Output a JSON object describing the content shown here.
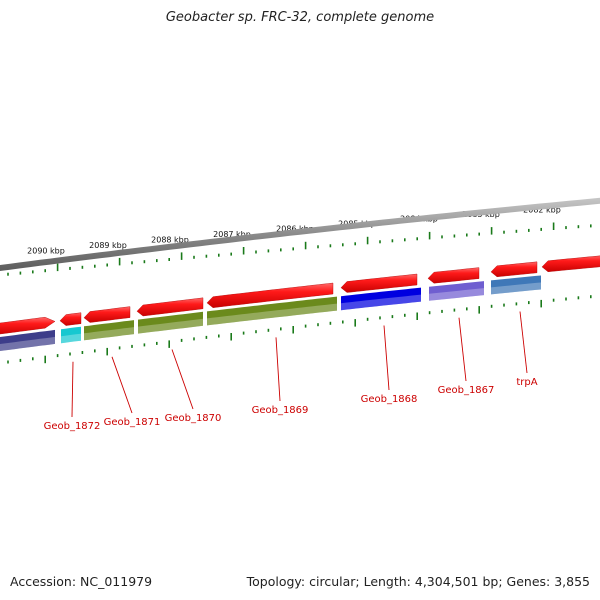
{
  "title": "Geobacter sp. FRC-32, complete genome",
  "footer": {
    "accession": "Accession: NC_011979",
    "topology": "Topology: circular; Length: 4,304,501 bp; Genes: 3,855"
  },
  "colors": {
    "forward": "#ff1a1a",
    "backbone": "#808080",
    "tick": "#1a7a1a",
    "label": "#cc0000"
  },
  "scale_labels": [
    "2090 kbp",
    "2089 kbp",
    "2088 kbp",
    "2087 kbp",
    "2086 kbp",
    "2085 kbp",
    "2084 kbp",
    "2083 kbp",
    "2082 kbp"
  ],
  "forward_genes": [
    {
      "start": -10,
      "end": 55,
      "dir": "right"
    },
    {
      "start": 60,
      "end": 82,
      "dir": "left"
    },
    {
      "start": 84,
      "end": 133,
      "dir": "left"
    },
    {
      "start": 137,
      "end": 203,
      "dir": "left"
    },
    {
      "start": 207,
      "end": 336,
      "dir": "left"
    },
    {
      "start": 341,
      "end": 418,
      "dir": "left"
    },
    {
      "start": 428,
      "end": 481,
      "dir": "left"
    },
    {
      "start": 491,
      "end": 540,
      "dir": "left"
    },
    {
      "start": 542,
      "end": 610,
      "dir": "left"
    }
  ],
  "cog_blocks": [
    {
      "start": -10,
      "end": 57,
      "color": "#3d3d8a"
    },
    {
      "start": 61,
      "end": 83,
      "color": "#17c8d0"
    },
    {
      "start": 84,
      "end": 138,
      "color": "#6b8a1c"
    },
    {
      "start": 138,
      "end": 204,
      "color": "#6b8a1c"
    },
    {
      "start": 207,
      "end": 338,
      "color": "#6b8a1c"
    },
    {
      "start": 341,
      "end": 421,
      "color": "#0000e0"
    },
    {
      "start": 429,
      "end": 484,
      "color": "#6f5ed0"
    },
    {
      "start": 491,
      "end": 542,
      "color": "#3f78b8"
    }
  ],
  "gene_labels": [
    {
      "text": "Geob_1872",
      "anchor": 73
    },
    {
      "text": "Geob_1871",
      "anchor": 112
    },
    {
      "text": "Geob_1870",
      "anchor": 172
    },
    {
      "text": "Geob_1869",
      "anchor": 276
    },
    {
      "text": "Geob_1868",
      "anchor": 384
    },
    {
      "text": "Geob_1867",
      "anchor": 459
    },
    {
      "text": "trpA",
      "anchor": 520
    }
  ]
}
